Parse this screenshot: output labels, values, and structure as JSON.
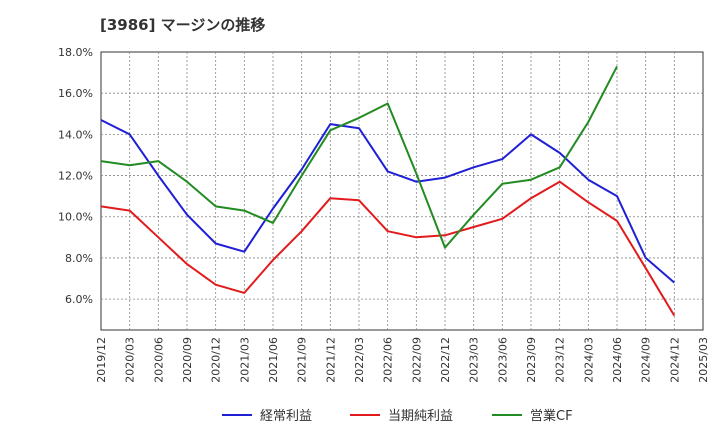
{
  "title": "[3986]  マージンの推移",
  "chart_data": {
    "type": "line",
    "title": "[3986]  マージンの推移",
    "x": [
      "2019/12",
      "2020/03",
      "2020/06",
      "2020/09",
      "2020/12",
      "2021/03",
      "2021/06",
      "2021/09",
      "2021/12",
      "2022/03",
      "2022/06",
      "2022/09",
      "2022/12",
      "2023/03",
      "2023/06",
      "2023/09",
      "2023/12",
      "2024/03",
      "2024/06",
      "2024/09",
      "2024/12",
      "2025/03"
    ],
    "y_ticks": [
      "6.0%",
      "8.0%",
      "10.0%",
      "12.0%",
      "14.0%",
      "16.0%",
      "18.0%"
    ],
    "ylim": [
      4.5,
      18.0
    ],
    "grid": true,
    "legend_position": "bottom",
    "series": [
      {
        "name": "経常利益",
        "color": "#1f1fd6",
        "values": [
          14.7,
          14.0,
          12.0,
          10.1,
          8.7,
          8.3,
          10.4,
          12.3,
          14.5,
          14.3,
          12.2,
          11.7,
          11.9,
          12.4,
          12.8,
          14.0,
          13.1,
          11.8,
          11.0,
          8.0,
          6.8,
          null
        ]
      },
      {
        "name": "当期純利益",
        "color": "#e31a1c",
        "values": [
          10.5,
          10.3,
          9.0,
          7.7,
          6.7,
          6.3,
          7.9,
          9.3,
          10.9,
          10.8,
          9.3,
          9.0,
          9.1,
          9.5,
          9.9,
          10.9,
          11.7,
          10.7,
          9.8,
          7.5,
          5.2,
          null
        ]
      },
      {
        "name": "営業CF",
        "color": "#228b22",
        "values": [
          12.7,
          12.5,
          12.7,
          11.7,
          10.5,
          10.3,
          9.7,
          12.0,
          14.2,
          14.8,
          15.5,
          12.1,
          8.5,
          10.1,
          11.6,
          11.8,
          12.4,
          14.6,
          17.3,
          null,
          null,
          null
        ]
      }
    ]
  }
}
